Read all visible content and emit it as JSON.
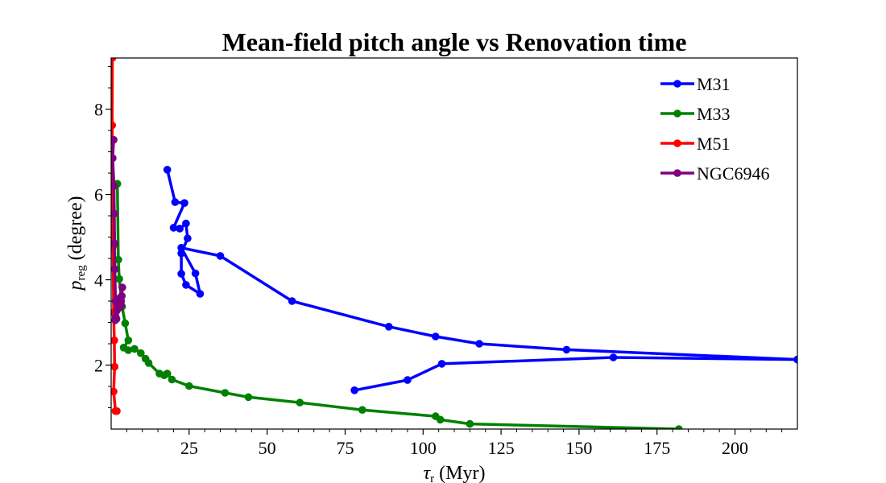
{
  "chart_data": {
    "type": "line",
    "title": "Mean-field pitch angle vs Renovation time",
    "xlabel": {
      "main": "τ",
      "sub": "r",
      "rest": " (Myr)"
    },
    "ylabel": {
      "main": "p",
      "sub": "reg",
      "rest": " (degree)"
    },
    "xlim": [
      0,
      220
    ],
    "ylim": [
      0.5,
      9.2
    ],
    "x_ticks": [
      25,
      50,
      75,
      100,
      125,
      150,
      175,
      200
    ],
    "y_ticks": [
      2,
      4,
      6,
      8
    ],
    "legend_position": "top-right",
    "series": [
      {
        "name": "M31",
        "color": "#0000ff",
        "points": [
          [
            220,
            2.13
          ],
          [
            161,
            2.18
          ],
          [
            106,
            2.03
          ],
          [
            95,
            1.65
          ],
          [
            78,
            1.41
          ]
        ],
        "points_upper": [
          [
            18,
            6.58
          ],
          [
            20.5,
            5.82
          ],
          [
            23.5,
            5.8
          ],
          [
            20,
            5.22
          ],
          [
            22,
            5.2
          ],
          [
            24,
            5.32
          ],
          [
            24.5,
            4.97
          ],
          [
            22.5,
            4.62
          ],
          [
            22.5,
            4.14
          ],
          [
            24,
            3.88
          ],
          [
            28.5,
            3.67
          ],
          [
            27,
            4.15
          ],
          [
            22.5,
            4.75
          ],
          [
            35,
            4.56
          ],
          [
            58,
            3.5
          ],
          [
            89,
            2.9
          ],
          [
            104,
            2.67
          ],
          [
            118,
            2.5
          ],
          [
            146,
            2.36
          ],
          [
            220,
            2.13
          ]
        ]
      },
      {
        "name": "M33",
        "color": "#008000",
        "points": [
          [
            2,
            6.25
          ],
          [
            2.3,
            4.47
          ],
          [
            2.6,
            4.02
          ],
          [
            3.5,
            3.37
          ],
          [
            4.5,
            2.98
          ],
          [
            5.5,
            2.58
          ],
          [
            4,
            2.41
          ],
          [
            5.5,
            2.35
          ],
          [
            7.5,
            2.38
          ],
          [
            9.5,
            2.28
          ],
          [
            11,
            2.15
          ],
          [
            12,
            2.05
          ],
          [
            15.5,
            1.8
          ],
          [
            17,
            1.76
          ],
          [
            18,
            1.8
          ],
          [
            19.5,
            1.66
          ],
          [
            25,
            1.51
          ],
          [
            36.5,
            1.35
          ],
          [
            44,
            1.25
          ],
          [
            60.5,
            1.12
          ],
          [
            80.5,
            0.95
          ],
          [
            104,
            0.8
          ],
          [
            105.5,
            0.72
          ],
          [
            115,
            0.62
          ],
          [
            182,
            0.5
          ]
        ]
      },
      {
        "name": "M51",
        "color": "#ff0000",
        "points": [
          [
            0.4,
            9.2
          ],
          [
            0.3,
            7.62
          ],
          [
            0.6,
            4.78
          ],
          [
            0.8,
            3.23
          ],
          [
            1.0,
            2.58
          ],
          [
            1.1,
            1.96
          ],
          [
            0.8,
            1.38
          ],
          [
            1.4,
            0.92
          ],
          [
            1.8,
            0.92
          ]
        ]
      },
      {
        "name": "NGC6946",
        "color": "#800080",
        "points": [
          [
            0.8,
            7.28
          ],
          [
            0.5,
            6.85
          ],
          [
            0.9,
            6.2
          ],
          [
            1.0,
            5.55
          ],
          [
            1.1,
            4.85
          ],
          [
            1.2,
            4.25
          ],
          [
            1.4,
            3.5
          ],
          [
            1.5,
            3.12
          ],
          [
            1.7,
            3.08
          ],
          [
            2.5,
            3.35
          ],
          [
            3.2,
            3.4
          ],
          [
            3.4,
            3.62
          ],
          [
            3.6,
            3.82
          ],
          [
            3.2,
            3.5
          ],
          [
            2.8,
            3.35
          ],
          [
            1.8,
            3.28
          ],
          [
            2.0,
            3.55
          ],
          [
            1.3,
            3.05
          ]
        ]
      }
    ]
  }
}
